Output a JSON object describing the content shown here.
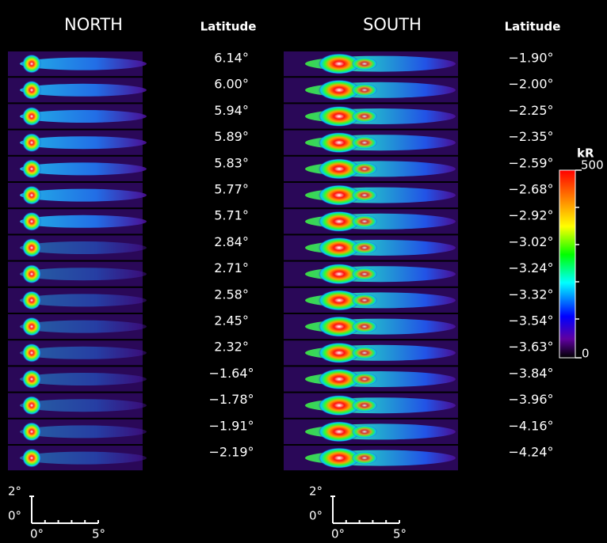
{
  "north": {
    "title": "NORTH",
    "latitude_header": "Latitude",
    "latitudes": [
      "6.14°",
      "6.00°",
      "5.94°",
      "5.89°",
      "5.83°",
      "5.77°",
      "5.71°",
      "2.84°",
      "2.71°",
      "2.58°",
      "2.45°",
      "2.32°",
      "−1.64°",
      "−1.78°",
      "−1.91°",
      "−2.19°"
    ]
  },
  "south": {
    "title": "SOUTH",
    "latitude_header": "Latitude",
    "latitudes": [
      "−1.90°",
      "−2.00°",
      "−2.25°",
      "−2.35°",
      "−2.59°",
      "−2.68°",
      "−2.92°",
      "−3.02°",
      "−3.24°",
      "−3.32°",
      "−3.54°",
      "−3.63°",
      "−3.84°",
      "−3.96°",
      "−4.16°",
      "−4.24°"
    ]
  },
  "colorbar": {
    "unit": "kR",
    "max_label": "500",
    "min_label": "0"
  },
  "scale_bars": [
    {
      "y_top": "2°",
      "y_bottom": "0°",
      "x_left": "0°",
      "x_right": "5°"
    },
    {
      "y_top": "2°",
      "y_bottom": "0°",
      "x_left": "0°",
      "x_right": "5°"
    }
  ]
}
